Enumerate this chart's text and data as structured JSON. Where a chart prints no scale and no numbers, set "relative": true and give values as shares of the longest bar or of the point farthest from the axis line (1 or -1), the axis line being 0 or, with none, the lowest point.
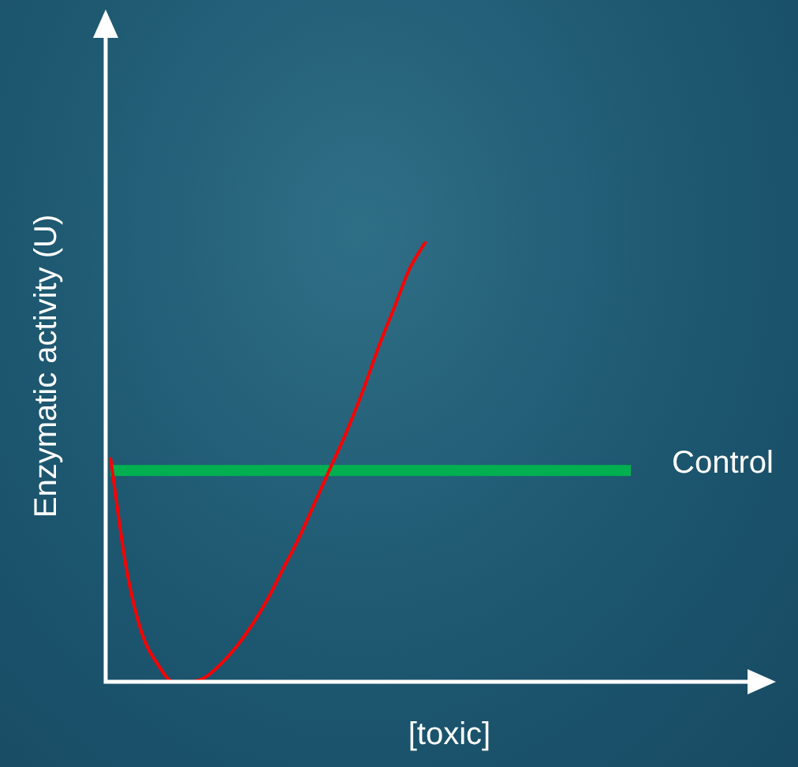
{
  "chart_data": {
    "type": "line",
    "relative": true,
    "xlabel": "[toxic]",
    "ylabel": "Enzymatic activity (U)",
    "legend": false,
    "marker": "none",
    "tick_labels": false,
    "categories": [
      null,
      null,
      null,
      null,
      null,
      null,
      null,
      null,
      null,
      null,
      null,
      null,
      null,
      null,
      null,
      null,
      null,
      null,
      null,
      null,
      null,
      null,
      null,
      null,
      null,
      null,
      null,
      null,
      null,
      null,
      null,
      null,
      null,
      null,
      null,
      null,
      null,
      null,
      null,
      null,
      null,
      null,
      null
    ],
    "series": [
      {
        "color": "#ff0000",
        "values": [
          0.51,
          0.26,
          0.11,
          0.04,
          0.0,
          0.0,
          0.01,
          0.04,
          0.08,
          0.13,
          0.19,
          0.26,
          0.33,
          0.41,
          0.49,
          0.57,
          0.66,
          0.76,
          0.85,
          0.94,
          1,
          null,
          null,
          null,
          null,
          null,
          null,
          null,
          null,
          null,
          null,
          null,
          null,
          null,
          null,
          null,
          null,
          null,
          null,
          null,
          null,
          null,
          null
        ]
      },
      {
        "name": "Control",
        "color": "#00b050",
        "values": [
          0.48,
          0.48,
          0.48,
          0.48,
          0.48,
          0.48,
          0.48,
          0.48,
          0.48,
          0.48,
          0.48,
          0.48,
          0.48,
          0.48,
          0.48,
          0.48,
          0.48,
          0.48,
          0.48,
          0.48,
          0.48,
          0.48,
          0.48,
          0.48,
          0.48,
          0.48,
          0.48,
          0.48,
          0.48,
          0.48,
          0.48,
          0.48,
          0.48,
          0.48,
          null,
          null,
          null,
          null,
          null,
          null,
          null,
          null,
          null
        ]
      }
    ]
  }
}
